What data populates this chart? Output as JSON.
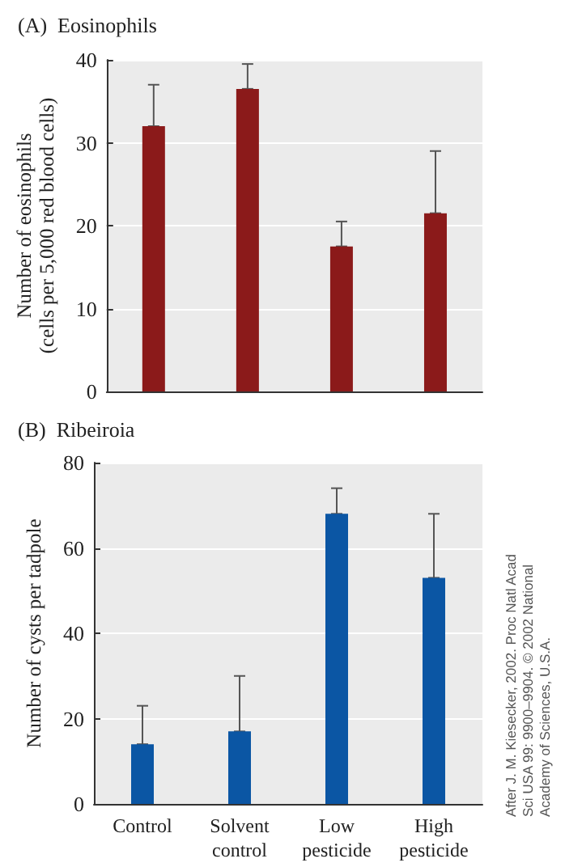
{
  "chart_data": [
    {
      "type": "bar",
      "title": "(A)  Eosinophils",
      "ylabel": "Number of eosinophils\n(cells per 5,000 red blood cells)",
      "categories": [
        null,
        null,
        null,
        null
      ],
      "series": [
        {
          "color": "#8b1a1a",
          "values": [
            32,
            36.5,
            17.5,
            21.5
          ],
          "errors": [
            [
              32,
              37
            ],
            [
              36.5,
              39.5
            ],
            [
              17.5,
              20.5
            ],
            [
              21.5,
              29
            ]
          ]
        }
      ],
      "ylim": [
        0,
        40
      ],
      "yticks": [
        0,
        10,
        20,
        30,
        40
      ],
      "grid": "y",
      "tick_labels": "y"
    },
    {
      "type": "bar",
      "title": "(B)  Ribeiroia",
      "ylabel": "Number of cysts per tadpole",
      "categories": [
        "Control",
        "Solvent\ncontrol",
        "Low\npesticide",
        "High\npesticide"
      ],
      "series": [
        {
          "color": "#0b56a4",
          "values": [
            14,
            17,
            68,
            53
          ],
          "errors": [
            [
              14,
              23
            ],
            [
              17,
              30
            ],
            [
              68,
              74
            ],
            [
              53,
              68
            ]
          ]
        }
      ],
      "ylim": [
        0,
        80
      ],
      "yticks": [
        0,
        20,
        40,
        60,
        80
      ],
      "grid": "y",
      "annotations": [
        "After J. M. Kiesecker, 2002. Proc Natl Acad Sci USA 99: 9900–9904. © 2002 National Academy of Sciences, U.S.A."
      ]
    }
  ]
}
